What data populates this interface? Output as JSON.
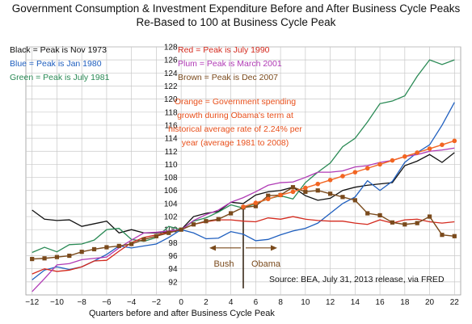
{
  "title_line1": "Government Consumption & Investment Expenditure Before and After Business Cycle Peaks",
  "title_line2": "Re-Based to 100 at Business Cycle Peak",
  "legend_left": [
    {
      "text": "Black = Peak is Nov 1973",
      "color": "#111111"
    },
    {
      "text": "Blue = Peak is Jan 1980",
      "color": "#1f5fbf"
    },
    {
      "text": "Green = Peak is July 1981",
      "color": "#2a8a55"
    }
  ],
  "legend_right": [
    {
      "text": "Red = Peak is July 1990",
      "color": "#d42a1e"
    },
    {
      "text": "Plum = Peak is March 2001",
      "color": "#b03ab5"
    },
    {
      "text": "Brown = Peak is Dec 2007",
      "color": "#7a4a1c"
    }
  ],
  "orange_note": "Orange = Government spending growth during Obama's term at historical average rate of 2.24% per year (average 1981 to 2008)",
  "bush_label": "Bush",
  "obama_label": "Obama",
  "source": "Source:  BEA, July 31, 2013 release, via FRED",
  "xlabel": "Quarters before and after Business Cycle Peak",
  "chart_data": {
    "type": "line",
    "title": "Government Consumption & Investment Expenditure Before and After Business Cycle Peaks",
    "subtitle": "Re-Based to 100 at Business Cycle Peak",
    "xlabel": "Quarters before and after Business Cycle Peak",
    "ylabel": "",
    "xlim": [
      -12.5,
      22.5
    ],
    "ylim": [
      90,
      128
    ],
    "x_ticks": [
      -12,
      -10,
      -8,
      -6,
      -4,
      -2,
      0,
      2,
      4,
      6,
      8,
      10,
      12,
      14,
      16,
      18,
      20,
      22
    ],
    "y_ticks": [
      92,
      94,
      96,
      98,
      100,
      102,
      104,
      106,
      108,
      110,
      112,
      114,
      116,
      118,
      120,
      122,
      124,
      126,
      128
    ],
    "grid": true,
    "legend": "text labels top-left and top-center",
    "annotations": [
      "Bush",
      "Obama",
      "Source:  BEA, July 31, 2013 release, via FRED"
    ],
    "divider_x": 5,
    "series": [
      {
        "name": "Black = Peak is Nov 1973",
        "color": "#111111",
        "marker": "none",
        "x_start": -12,
        "values": [
          103,
          101.6,
          101.4,
          101.5,
          100.5,
          100.9,
          101.3,
          99.5,
          100,
          99.5,
          99.5,
          99.7,
          100,
          102,
          102.5,
          102.8,
          104.2,
          104,
          105.3,
          105.8,
          106,
          106.5,
          105.2,
          104.5,
          104.8,
          106,
          106.5,
          106.8,
          107,
          107.2,
          109.8,
          110.5,
          111.5,
          110.3,
          111.8
        ]
      },
      {
        "name": "Blue = Peak is Jan 1980",
        "color": "#1f5fbf",
        "marker": "none",
        "x_start": -12,
        "values": [
          92.3,
          93.8,
          94.3,
          93.9,
          94.3,
          95.2,
          96.2,
          97.5,
          97.2,
          97.5,
          97.8,
          98.8,
          100,
          99.5,
          98.6,
          98.7,
          99.7,
          99.3,
          98.3,
          98.5,
          99.2,
          99.8,
          100.2,
          101,
          102.5,
          104,
          105,
          107.5,
          106,
          107.4,
          110.3,
          111.8,
          113,
          116,
          119.5
        ]
      },
      {
        "name": "Green = Peak is July 1981",
        "color": "#2a8a55",
        "marker": "none",
        "x_start": -12,
        "values": [
          96.5,
          97.3,
          96.6,
          97.7,
          97.8,
          98.4,
          100,
          100.2,
          98.5,
          98.2,
          98.8,
          100.5,
          100,
          101.3,
          101.8,
          102.7,
          103.8,
          103.3,
          104,
          104.7,
          105.2,
          104.7,
          107.2,
          108.8,
          110.2,
          112.7,
          114,
          116.5,
          119.3,
          119.7,
          120.5,
          123.5,
          126,
          125.3,
          126
        ]
      },
      {
        "name": "Red = Peak is July 1990",
        "color": "#d42a1e",
        "marker": "none",
        "x_start": -12,
        "values": [
          93.2,
          94,
          93.6,
          93.8,
          94.3,
          95.2,
          95.3,
          96.7,
          98,
          98.8,
          99.2,
          99.6,
          100,
          100.8,
          101.2,
          101.5,
          101.5,
          101.3,
          101.2,
          101.8,
          101.6,
          102,
          101.6,
          101.4,
          101.3,
          101.3,
          101,
          100.8,
          101.5,
          101,
          101.5,
          101.6,
          101.2,
          101,
          101.2
        ]
      },
      {
        "name": "Plum = Peak is March 2001",
        "color": "#b03ab5",
        "marker": "none",
        "x_start": -12,
        "values": [
          90.5,
          92.5,
          94.6,
          94.8,
          95.4,
          95.6,
          95.8,
          97.2,
          98.4,
          99.5,
          99.6,
          99.8,
          100,
          101.4,
          102.3,
          103,
          104.2,
          104.9,
          105.8,
          106.8,
          107.2,
          107.3,
          108,
          108.8,
          108.8,
          109,
          109.6,
          109.8,
          110.3,
          110.6,
          111.2,
          111.5,
          112,
          112.2,
          112.5
        ]
      },
      {
        "name": "Brown = Peak is Dec 2007",
        "color": "#7a4a1c",
        "marker": "square",
        "x_start": -12,
        "values": [
          95.5,
          95.6,
          95.8,
          96,
          96.6,
          97,
          97.3,
          97.5,
          97.8,
          98.5,
          99,
          99.5,
          100,
          100.8,
          101.3,
          101.6,
          102.5,
          103.4,
          103.6,
          105.2,
          105.3,
          106.5,
          105.8,
          106,
          105.5,
          105,
          104.5,
          102.5,
          102.2,
          101.1,
          100.8,
          101,
          102,
          99.2,
          99
        ]
      },
      {
        "name": "Orange = Government spending growth during Obama's term at historical average rate of 2.24% per year (average 1981 to 2008)",
        "color": "#f26522",
        "marker": "circle",
        "x_start": 5,
        "values": [
          103.5,
          104.1,
          104.7,
          105.3,
          105.8,
          106.4,
          107,
          107.6,
          108.2,
          108.8,
          109.4,
          110,
          110.6,
          111.2,
          111.8,
          112.4,
          113,
          113.6
        ]
      }
    ]
  }
}
